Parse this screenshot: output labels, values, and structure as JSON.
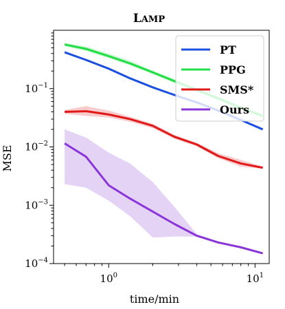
{
  "chart_data": {
    "type": "line",
    "title": "Lamp",
    "xlabel": "time/min",
    "ylabel": "MSE",
    "xscale": "log",
    "yscale": "log",
    "xlim": [
      0.42,
      12.5
    ],
    "ylim": [
      0.0001,
      1.0
    ],
    "xticks": [
      {
        "value": 1,
        "base": "10",
        "exp": "0"
      },
      {
        "value": 10,
        "base": "10",
        "exp": "1"
      }
    ],
    "yticks": [
      {
        "value": 0.0001,
        "base": "10",
        "exp": "−4"
      },
      {
        "value": 0.001,
        "base": "10",
        "exp": "−3"
      },
      {
        "value": 0.01,
        "base": "10",
        "exp": "−2"
      },
      {
        "value": 0.1,
        "base": "10",
        "exp": "−1"
      }
    ],
    "legend_position": "top-right",
    "series": [
      {
        "name": "PT",
        "color": "#1a4fe0",
        "x": [
          0.5,
          0.7,
          1.0,
          1.4,
          2.0,
          2.8,
          4.0,
          5.6,
          8.0,
          11.3
        ],
        "y": [
          0.42,
          0.31,
          0.22,
          0.15,
          0.105,
          0.078,
          0.058,
          0.042,
          0.029,
          0.02
        ],
        "band_low": [
          0.41,
          0.3,
          0.21,
          0.145,
          0.102,
          0.076,
          0.056,
          0.041,
          0.028,
          0.019
        ],
        "band_high": [
          0.43,
          0.32,
          0.23,
          0.155,
          0.108,
          0.08,
          0.06,
          0.043,
          0.03,
          0.021
        ]
      },
      {
        "name": "PPG",
        "color": "#22dd44",
        "x": [
          0.5,
          0.7,
          1.0,
          1.4,
          2.0,
          2.8,
          4.0,
          5.6,
          8.0,
          11.3
        ],
        "y": [
          0.57,
          0.48,
          0.36,
          0.27,
          0.19,
          0.135,
          0.095,
          0.068,
          0.047,
          0.034
        ],
        "band_low": [
          0.53,
          0.44,
          0.33,
          0.25,
          0.175,
          0.125,
          0.088,
          0.063,
          0.044,
          0.032
        ],
        "band_high": [
          0.61,
          0.53,
          0.4,
          0.3,
          0.205,
          0.145,
          0.102,
          0.073,
          0.05,
          0.036
        ]
      },
      {
        "name": "SMS*",
        "color": "#e01818",
        "x": [
          0.5,
          0.7,
          1.0,
          1.4,
          2.0,
          2.8,
          4.0,
          5.6,
          8.0,
          11.3
        ],
        "y": [
          0.04,
          0.041,
          0.036,
          0.03,
          0.023,
          0.015,
          0.011,
          0.007,
          0.0052,
          0.0044
        ],
        "band_low": [
          0.037,
          0.034,
          0.032,
          0.027,
          0.021,
          0.0138,
          0.0102,
          0.0064,
          0.0046,
          0.0042
        ],
        "band_high": [
          0.043,
          0.05,
          0.042,
          0.033,
          0.025,
          0.0162,
          0.0118,
          0.0078,
          0.006,
          0.0046
        ]
      },
      {
        "name": "Ours",
        "color": "#8a35d8",
        "x": [
          0.5,
          0.7,
          1.0,
          1.4,
          2.0,
          2.8,
          4.0,
          5.6,
          8.0,
          11.3
        ],
        "y": [
          0.0115,
          0.0068,
          0.0022,
          0.0013,
          0.00078,
          0.00048,
          0.0003,
          0.00023,
          0.00019,
          0.00015
        ],
        "band_low": [
          0.0023,
          0.002,
          0.0012,
          0.00065,
          0.00028,
          0.00029,
          0.00029,
          0.00022,
          0.000185,
          0.000148
        ],
        "band_high": [
          0.02,
          0.0145,
          0.008,
          0.0052,
          0.0025,
          0.00095,
          0.00032,
          0.00024,
          0.000198,
          0.000155
        ]
      }
    ]
  }
}
